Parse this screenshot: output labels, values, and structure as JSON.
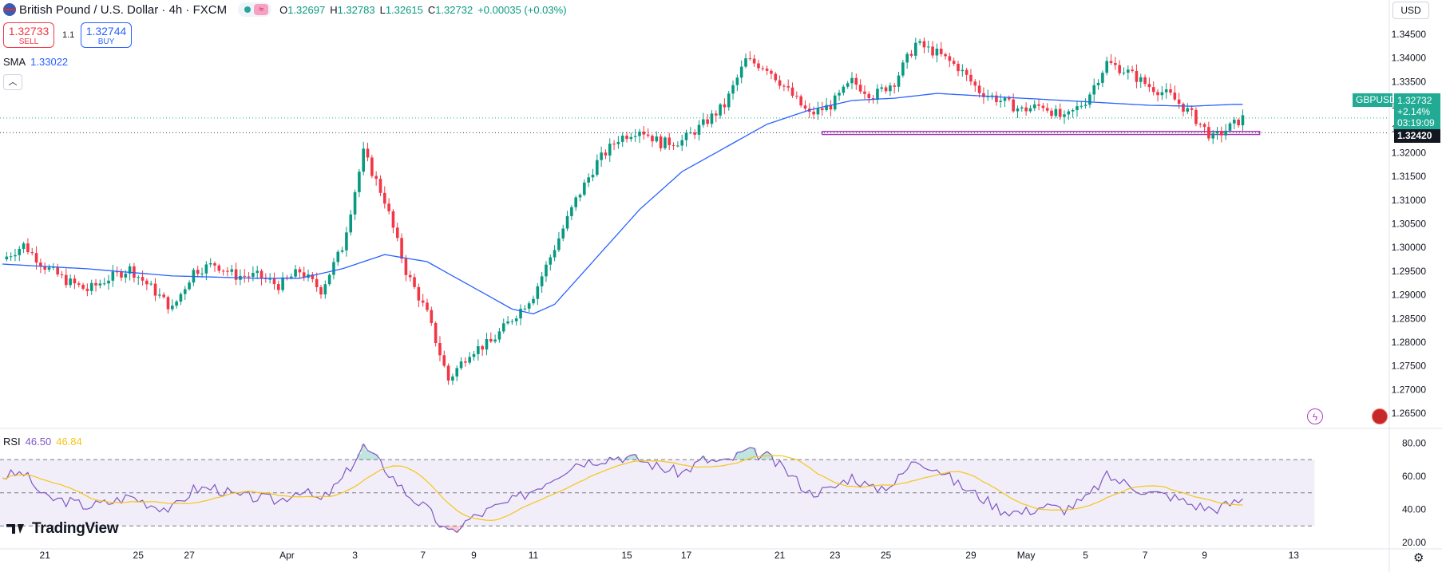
{
  "header": {
    "title": "British Pound / U.S. Dollar · 4h · FXCM",
    "open_label": "O",
    "open": "1.32697",
    "high_label": "H",
    "high": "1.32783",
    "low_label": "L",
    "low": "1.32615",
    "close_label": "C",
    "close": "1.32732",
    "change": "+0.00035 (+0.03%)",
    "wave_icon": "≈"
  },
  "trade": {
    "sell_price": "1.32733",
    "sell_label": "SELL",
    "buy_price": "1.32744",
    "buy_label": "BUY",
    "spread": "1.1"
  },
  "indicators": {
    "sma_label": "SMA",
    "sma_value": "1.33022",
    "rsi_label": "RSI",
    "rsi_value": "46.50",
    "rsi_ma_value": "46.84"
  },
  "price_scale": {
    "currency": "USD",
    "symbol_tag": "GBPUSD",
    "last_price": "1.32732",
    "change_pct": "+2.14%",
    "countdown": "03:19:09",
    "level_tag": "1.32420"
  },
  "brand": "TradingView",
  "colors": {
    "up": "#089981",
    "down": "#f23645",
    "sma": "#2962ff",
    "rsi": "#7e57c2",
    "rsi_ma": "#f5c518",
    "zone": "#9c27b0"
  },
  "chart_data": {
    "type": "candlestick",
    "symbol": "GBPUSD",
    "timeframe": "4h",
    "ylim": [
      1.2625,
      1.3475
    ],
    "yticks": [
      1.265,
      1.27,
      1.275,
      1.28,
      1.285,
      1.29,
      1.295,
      1.3,
      1.305,
      1.31,
      1.315,
      1.32,
      1.325,
      1.33,
      1.335,
      1.34,
      1.345
    ],
    "ytick_labels": [
      "1.26500",
      "1.27000",
      "1.27500",
      "1.28000",
      "1.28500",
      "1.29000",
      "1.29500",
      "1.30000",
      "1.30500",
      "1.31000",
      "1.31500",
      "1.32000",
      "1.32500",
      "1.33000",
      "1.33500",
      "1.34000",
      "1.34500"
    ],
    "xtick_labels": [
      "21",
      "25",
      "27",
      "Apr",
      "3",
      "7",
      "9",
      "11",
      "15",
      "17",
      "21",
      "23",
      "25",
      "29",
      "May",
      "5",
      "7",
      "9",
      "13"
    ],
    "x_label_slot": [
      10,
      32,
      44,
      67,
      83,
      99,
      111,
      125,
      147,
      161,
      183,
      196,
      208,
      228,
      241,
      255,
      269,
      283,
      304
    ],
    "support_zone": {
      "low": 1.324,
      "high": 1.3245,
      "from_slot": 193,
      "to_slot": 296
    },
    "dotted_levels": [
      1.32732,
      1.3242
    ],
    "keyframes": {
      "slot": [
        0,
        5,
        10,
        15,
        20,
        25,
        30,
        35,
        40,
        45,
        50,
        55,
        60,
        65,
        70,
        75,
        80,
        85,
        90,
        95,
        100,
        105,
        110,
        115,
        120,
        125,
        130,
        135,
        140,
        145,
        150,
        155,
        160,
        165,
        170,
        175,
        180,
        185,
        190,
        195,
        200,
        205,
        210,
        215,
        220,
        225,
        230,
        235,
        240,
        245,
        250,
        255,
        260,
        265,
        270,
        275,
        280,
        285,
        290,
        292
      ],
      "close": [
        1.2975,
        1.3005,
        1.296,
        1.293,
        1.291,
        1.2935,
        1.2955,
        1.2915,
        1.287,
        1.295,
        1.2965,
        1.294,
        1.294,
        1.292,
        1.295,
        1.291,
        1.3,
        1.32,
        1.31,
        1.295,
        1.286,
        1.272,
        1.278,
        1.28,
        1.285,
        1.29,
        1.3,
        1.31,
        1.318,
        1.323,
        1.325,
        1.322,
        1.3225,
        1.326,
        1.33,
        1.3395,
        1.338,
        1.333,
        1.328,
        1.33,
        1.335,
        1.332,
        1.335,
        1.343,
        1.341,
        1.338,
        1.333,
        1.331,
        1.329,
        1.33,
        1.327,
        1.331,
        1.339,
        1.337,
        1.334,
        1.332,
        1.328,
        1.323,
        1.326,
        1.3273
      ]
    },
    "rsi": {
      "ylim": [
        20,
        85
      ],
      "yticks": [
        20,
        40,
        60,
        80
      ],
      "ytick_labels": [
        "20.00",
        "40.00",
        "60.00",
        "80.00"
      ],
      "bands": [
        30,
        50,
        70
      ],
      "keyframes": {
        "slot": [
          0,
          5,
          10,
          15,
          20,
          25,
          30,
          35,
          40,
          45,
          50,
          55,
          60,
          65,
          70,
          75,
          80,
          85,
          90,
          95,
          100,
          105,
          110,
          115,
          120,
          125,
          130,
          135,
          140,
          145,
          150,
          155,
          160,
          165,
          170,
          175,
          180,
          185,
          190,
          195,
          200,
          205,
          210,
          215,
          220,
          225,
          230,
          235,
          240,
          245,
          250,
          255,
          260,
          265,
          270,
          275,
          280,
          285,
          290,
          292
        ],
        "value": [
          60,
          62,
          47,
          45,
          42,
          44,
          48,
          43,
          40,
          52,
          53,
          48,
          47,
          45,
          52,
          45,
          58,
          78,
          65,
          50,
          40,
          25,
          34,
          40,
          45,
          52,
          60,
          68,
          70,
          72,
          70,
          65,
          62,
          70,
          68,
          75,
          72,
          62,
          50,
          52,
          60,
          52,
          56,
          70,
          65,
          55,
          48,
          40,
          38,
          42,
          40,
          46,
          60,
          55,
          50,
          48,
          43,
          40,
          44,
          46
        ]
      }
    },
    "sma": {
      "period_note_hidden": true,
      "keyframes": {
        "slot": [
          0,
          20,
          40,
          60,
          70,
          80,
          90,
          100,
          110,
          120,
          125,
          130,
          140,
          150,
          160,
          170,
          180,
          190,
          200,
          210,
          220,
          230,
          240,
          250,
          260,
          270,
          280,
          290
        ],
        "value": [
          1.2965,
          1.2955,
          1.294,
          1.2935,
          1.2935,
          1.2955,
          1.2985,
          1.297,
          1.292,
          1.287,
          1.286,
          1.288,
          1.298,
          1.308,
          1.316,
          1.321,
          1.326,
          1.329,
          1.331,
          1.3315,
          1.3325,
          1.332,
          1.3315,
          1.331,
          1.3305,
          1.33,
          1.3298,
          1.3302
        ]
      }
    }
  }
}
